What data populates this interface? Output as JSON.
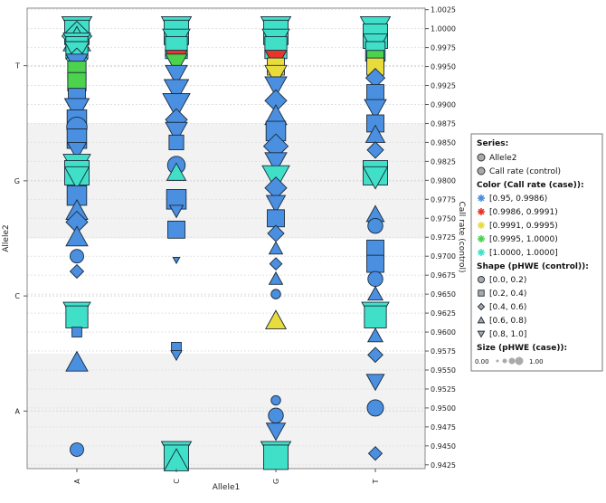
{
  "chart_data": {
    "type": "scatter",
    "x_axis": {
      "label": "Allele1",
      "categories": [
        "A",
        "C",
        "G",
        "T"
      ]
    },
    "y_left_axis": {
      "label": "Allele2",
      "categories": [
        "A",
        "C",
        "G",
        "T"
      ]
    },
    "y_right_axis": {
      "label": "Call rate (control)",
      "range": [
        0.942,
        1.0027
      ],
      "ticks": [
        "1.0025",
        "1.0000",
        "0.9975",
        "0.9950",
        "0.9925",
        "0.9900",
        "0.9875",
        "0.9850",
        "0.9825",
        "0.9800",
        "0.9775",
        "0.9750",
        "0.9725",
        "0.9700",
        "0.9675",
        "0.9650",
        "0.9625",
        "0.9600",
        "0.9575",
        "0.9550",
        "0.9525",
        "0.9500",
        "0.9475",
        "0.9450",
        "0.9425"
      ]
    },
    "grid": true,
    "legend": {
      "position": "right",
      "series_title": "Series:",
      "series": [
        {
          "name": "Allele2",
          "symbol": "circle"
        },
        {
          "name": "Call rate (control)",
          "symbol": "circle"
        }
      ],
      "color_title": "Color (Call rate (case)):",
      "color_bins": [
        {
          "label": "[0.95, 0.9986)",
          "color": "#4a8fe0"
        },
        {
          "label": "[0.9986, 0.9991)",
          "color": "#e8342a"
        },
        {
          "label": "[0.9991, 0.9995)",
          "color": "#e8dc3c"
        },
        {
          "label": "[0.9995, 1.0000)",
          "color": "#4cd24c"
        },
        {
          "label": "[1.0000, 1.0000]",
          "color": "#40e0c8"
        }
      ],
      "shape_title": "Shape (pHWE (control)):",
      "shape_bins": [
        {
          "label": "[0.0, 0.2)",
          "shape": "circle"
        },
        {
          "label": "[0.2, 0.4)",
          "shape": "square"
        },
        {
          "label": "[0.4, 0.6)",
          "shape": "diamond"
        },
        {
          "label": "[0.6, 0.8)",
          "shape": "triangle-up"
        },
        {
          "label": "[0.8, 1.0]",
          "shape": "triangle-down"
        }
      ],
      "size_title": "Size (pHWE (case)):",
      "size_min_label": "0.00",
      "size_max_label": "1.00"
    },
    "points": [
      {
        "x": "A",
        "y": 1.0,
        "s": "triangle-down",
        "c": "#40e0c8",
        "z": 0.9
      },
      {
        "x": "A",
        "y": 0.9995,
        "s": "square",
        "c": "#40e0c8",
        "z": 0.8
      },
      {
        "x": "A",
        "y": 0.999,
        "s": "diamond",
        "c": "#40e0c8",
        "z": 0.9
      },
      {
        "x": "A",
        "y": 0.9985,
        "s": "triangle-up",
        "c": "#40e0c8",
        "z": 0.8
      },
      {
        "x": "A",
        "y": 0.998,
        "s": "triangle-down",
        "c": "#40e0c8",
        "z": 0.8
      },
      {
        "x": "A",
        "y": 0.9975,
        "s": "square",
        "c": "#40e0c8",
        "z": 0.7
      },
      {
        "x": "A",
        "y": 0.997,
        "s": "triangle-down",
        "c": "#40e0c8",
        "z": 0.7
      },
      {
        "x": "A",
        "y": 0.996,
        "s": "diamond",
        "c": "#40e0c8",
        "z": 0.6
      },
      {
        "x": "A",
        "y": 0.9955,
        "s": "triangle-down",
        "c": "#4a8fe0",
        "z": 0.6
      },
      {
        "x": "A",
        "y": 0.9945,
        "s": "square",
        "c": "#4cd24c",
        "z": 0.55
      },
      {
        "x": "A",
        "y": 0.993,
        "s": "square",
        "c": "#4cd24c",
        "z": 0.55
      },
      {
        "x": "A",
        "y": 0.991,
        "s": "square",
        "c": "#4a8fe0",
        "z": 0.5
      },
      {
        "x": "A",
        "y": 0.9895,
        "s": "triangle-down",
        "c": "#4a8fe0",
        "z": 0.7
      },
      {
        "x": "A",
        "y": 0.988,
        "s": "square",
        "c": "#4a8fe0",
        "z": 0.6
      },
      {
        "x": "A",
        "y": 0.987,
        "s": "circle",
        "c": "#4a8fe0",
        "z": 0.55
      },
      {
        "x": "A",
        "y": 0.9855,
        "s": "square",
        "c": "#4a8fe0",
        "z": 0.6
      },
      {
        "x": "A",
        "y": 0.984,
        "s": "triangle-down",
        "c": "#4a8fe0",
        "z": 0.5
      },
      {
        "x": "A",
        "y": 0.982,
        "s": "triangle-down",
        "c": "#40e0c8",
        "z": 0.8
      },
      {
        "x": "A",
        "y": 0.981,
        "s": "square",
        "c": "#40e0c8",
        "z": 0.8
      },
      {
        "x": "A",
        "y": 0.9805,
        "s": "triangle-down",
        "c": "#40e0c8",
        "z": 0.7
      },
      {
        "x": "A",
        "y": 0.978,
        "s": "square",
        "c": "#4a8fe0",
        "z": 0.6
      },
      {
        "x": "A",
        "y": 0.976,
        "s": "triangle-up",
        "c": "#4a8fe0",
        "z": 0.6
      },
      {
        "x": "A",
        "y": 0.9745,
        "s": "diamond",
        "c": "#4a8fe0",
        "z": 0.6
      },
      {
        "x": "A",
        "y": 0.9725,
        "s": "triangle-up",
        "c": "#4a8fe0",
        "z": 0.6
      },
      {
        "x": "A",
        "y": 0.97,
        "s": "circle",
        "c": "#4a8fe0",
        "z": 0.3
      },
      {
        "x": "A",
        "y": 0.968,
        "s": "diamond",
        "c": "#4a8fe0",
        "z": 0.3
      },
      {
        "x": "A",
        "y": 0.9625,
        "s": "triangle-down",
        "c": "#40e0c8",
        "z": 0.8
      },
      {
        "x": "A",
        "y": 0.962,
        "s": "square",
        "c": "#40e0c8",
        "z": 0.7
      },
      {
        "x": "A",
        "y": 0.96,
        "s": "square",
        "c": "#4a8fe0",
        "z": 0.2
      },
      {
        "x": "A",
        "y": 0.956,
        "s": "triangle-up",
        "c": "#4a8fe0",
        "z": 0.6
      },
      {
        "x": "A",
        "y": 0.9445,
        "s": "circle",
        "c": "#4a8fe0",
        "z": 0.3
      },
      {
        "x": "C",
        "y": 1.0,
        "s": "triangle-down",
        "c": "#40e0c8",
        "z": 0.9
      },
      {
        "x": "C",
        "y": 0.9995,
        "s": "square",
        "c": "#40e0c8",
        "z": 0.8
      },
      {
        "x": "C",
        "y": 0.9985,
        "s": "triangle-down",
        "c": "#40e0c8",
        "z": 0.8
      },
      {
        "x": "C",
        "y": 0.9975,
        "s": "square",
        "c": "#40e0c8",
        "z": 0.7
      },
      {
        "x": "C",
        "y": 0.996,
        "s": "triangle-down",
        "c": "#e8342a",
        "z": 0.6
      },
      {
        "x": "C",
        "y": 0.9955,
        "s": "triangle-down",
        "c": "#4cd24c",
        "z": 0.6
      },
      {
        "x": "C",
        "y": 0.994,
        "s": "triangle-down",
        "c": "#4a8fe0",
        "z": 0.6
      },
      {
        "x": "C",
        "y": 0.992,
        "s": "triangle-down",
        "c": "#4a8fe0",
        "z": 0.7
      },
      {
        "x": "C",
        "y": 0.99,
        "s": "triangle-down",
        "c": "#4a8fe0",
        "z": 0.8
      },
      {
        "x": "C",
        "y": 0.988,
        "s": "diamond",
        "c": "#4a8fe0",
        "z": 0.6
      },
      {
        "x": "C",
        "y": 0.9865,
        "s": "triangle-down",
        "c": "#4a8fe0",
        "z": 0.6
      },
      {
        "x": "C",
        "y": 0.985,
        "s": "square",
        "c": "#4a8fe0",
        "z": 0.4
      },
      {
        "x": "C",
        "y": 0.982,
        "s": "circle",
        "c": "#4a8fe0",
        "z": 0.45
      },
      {
        "x": "C",
        "y": 0.981,
        "s": "triangle-up",
        "c": "#40e0c8",
        "z": 0.5
      },
      {
        "x": "C",
        "y": 0.9775,
        "s": "square",
        "c": "#4a8fe0",
        "z": 0.6
      },
      {
        "x": "C",
        "y": 0.976,
        "s": "triangle-down",
        "c": "#4a8fe0",
        "z": 0.3
      },
      {
        "x": "C",
        "y": 0.9735,
        "s": "square",
        "c": "#4a8fe0",
        "z": 0.5
      },
      {
        "x": "C",
        "y": 0.9695,
        "s": "triangle-down",
        "c": "#4a8fe0",
        "z": 0.05
      },
      {
        "x": "C",
        "y": 0.958,
        "s": "square",
        "c": "#4a8fe0",
        "z": 0.2
      },
      {
        "x": "C",
        "y": 0.957,
        "s": "triangle-down",
        "c": "#4a8fe0",
        "z": 0.2
      },
      {
        "x": "C",
        "y": 0.944,
        "s": "triangle-down",
        "c": "#40e0c8",
        "z": 0.9
      },
      {
        "x": "C",
        "y": 0.9435,
        "s": "square",
        "c": "#40e0c8",
        "z": 0.8
      },
      {
        "x": "C",
        "y": 0.943,
        "s": "triangle-up",
        "c": "#40e0c8",
        "z": 0.7
      },
      {
        "x": "G",
        "y": 1.0,
        "s": "triangle-down",
        "c": "#40e0c8",
        "z": 0.9
      },
      {
        "x": "G",
        "y": 0.9995,
        "s": "square",
        "c": "#40e0c8",
        "z": 0.8
      },
      {
        "x": "G",
        "y": 0.9985,
        "s": "triangle-down",
        "c": "#40e0c8",
        "z": 0.8
      },
      {
        "x": "G",
        "y": 0.9975,
        "s": "square",
        "c": "#40e0c8",
        "z": 0.7
      },
      {
        "x": "G",
        "y": 0.996,
        "s": "triangle-down",
        "c": "#e8342a",
        "z": 0.6
      },
      {
        "x": "G",
        "y": 0.995,
        "s": "square",
        "c": "#e8dc3c",
        "z": 0.5
      },
      {
        "x": "G",
        "y": 0.994,
        "s": "triangle-down",
        "c": "#e8dc3c",
        "z": 0.6
      },
      {
        "x": "G",
        "y": 0.9925,
        "s": "triangle-down",
        "c": "#4a8fe0",
        "z": 0.6
      },
      {
        "x": "G",
        "y": 0.9905,
        "s": "diamond",
        "c": "#4a8fe0",
        "z": 0.6
      },
      {
        "x": "G",
        "y": 0.9885,
        "s": "triangle-up",
        "c": "#4a8fe0",
        "z": 0.6
      },
      {
        "x": "G",
        "y": 0.9865,
        "s": "square",
        "c": "#4a8fe0",
        "z": 0.6
      },
      {
        "x": "G",
        "y": 0.9845,
        "s": "diamond",
        "c": "#4a8fe0",
        "z": 0.7
      },
      {
        "x": "G",
        "y": 0.9825,
        "s": "triangle-down",
        "c": "#4a8fe0",
        "z": 0.6
      },
      {
        "x": "G",
        "y": 0.9805,
        "s": "triangle-down",
        "c": "#40e0c8",
        "z": 0.8
      },
      {
        "x": "G",
        "y": 0.979,
        "s": "diamond",
        "c": "#4a8fe0",
        "z": 0.6
      },
      {
        "x": "G",
        "y": 0.977,
        "s": "triangle-down",
        "c": "#4a8fe0",
        "z": 0.5
      },
      {
        "x": "G",
        "y": 0.975,
        "s": "square",
        "c": "#4a8fe0",
        "z": 0.5
      },
      {
        "x": "G",
        "y": 0.973,
        "s": "diamond",
        "c": "#4a8fe0",
        "z": 0.4
      },
      {
        "x": "G",
        "y": 0.971,
        "s": "triangle-up",
        "c": "#4a8fe0",
        "z": 0.3
      },
      {
        "x": "G",
        "y": 0.969,
        "s": "diamond",
        "c": "#4a8fe0",
        "z": 0.25
      },
      {
        "x": "G",
        "y": 0.967,
        "s": "triangle-up",
        "c": "#4a8fe0",
        "z": 0.3
      },
      {
        "x": "G",
        "y": 0.965,
        "s": "circle",
        "c": "#4a8fe0",
        "z": 0.15
      },
      {
        "x": "G",
        "y": 0.9615,
        "s": "triangle-up",
        "c": "#e8dc3c",
        "z": 0.55
      },
      {
        "x": "G",
        "y": 0.951,
        "s": "circle",
        "c": "#4a8fe0",
        "z": 0.15
      },
      {
        "x": "G",
        "y": 0.949,
        "s": "circle",
        "c": "#4a8fe0",
        "z": 0.35
      },
      {
        "x": "G",
        "y": 0.947,
        "s": "triangle-down",
        "c": "#4a8fe0",
        "z": 0.5
      },
      {
        "x": "G",
        "y": 0.944,
        "s": "triangle-down",
        "c": "#40e0c8",
        "z": 0.9
      },
      {
        "x": "G",
        "y": 0.9435,
        "s": "square",
        "c": "#40e0c8",
        "z": 0.8
      },
      {
        "x": "T",
        "y": 1.0,
        "s": "triangle-down",
        "c": "#40e0c8",
        "z": 0.9
      },
      {
        "x": "T",
        "y": 0.999,
        "s": "square",
        "c": "#40e0c8",
        "z": 0.8
      },
      {
        "x": "T",
        "y": 0.998,
        "s": "triangle-down",
        "c": "#40e0c8",
        "z": 0.7
      },
      {
        "x": "T",
        "y": 0.997,
        "s": "square",
        "c": "#40e0c8",
        "z": 0.6
      },
      {
        "x": "T",
        "y": 0.996,
        "s": "square",
        "c": "#4cd24c",
        "z": 0.5
      },
      {
        "x": "T",
        "y": 0.995,
        "s": "square",
        "c": "#e8dc3c",
        "z": 0.5
      },
      {
        "x": "T",
        "y": 0.9935,
        "s": "diamond",
        "c": "#4a8fe0",
        "z": 0.5
      },
      {
        "x": "T",
        "y": 0.9915,
        "s": "square",
        "c": "#4a8fe0",
        "z": 0.5
      },
      {
        "x": "T",
        "y": 0.9895,
        "s": "triangle-down",
        "c": "#4a8fe0",
        "z": 0.6
      },
      {
        "x": "T",
        "y": 0.9875,
        "s": "square",
        "c": "#4a8fe0",
        "z": 0.5
      },
      {
        "x": "T",
        "y": 0.986,
        "s": "triangle-up",
        "c": "#4a8fe0",
        "z": 0.5
      },
      {
        "x": "T",
        "y": 0.984,
        "s": "diamond",
        "c": "#4a8fe0",
        "z": 0.4
      },
      {
        "x": "T",
        "y": 0.981,
        "s": "square",
        "c": "#40e0c8",
        "z": 0.8
      },
      {
        "x": "T",
        "y": 0.9805,
        "s": "triangle-down",
        "c": "#40e0c8",
        "z": 0.7
      },
      {
        "x": "T",
        "y": 0.9755,
        "s": "triangle-up",
        "c": "#4a8fe0",
        "z": 0.45
      },
      {
        "x": "T",
        "y": 0.974,
        "s": "circle",
        "c": "#4a8fe0",
        "z": 0.35
      },
      {
        "x": "T",
        "y": 0.971,
        "s": "square",
        "c": "#4a8fe0",
        "z": 0.5
      },
      {
        "x": "T",
        "y": 0.969,
        "s": "square",
        "c": "#4a8fe0",
        "z": 0.5
      },
      {
        "x": "T",
        "y": 0.967,
        "s": "circle",
        "c": "#4a8fe0",
        "z": 0.35
      },
      {
        "x": "T",
        "y": 0.965,
        "s": "triangle-up",
        "c": "#4a8fe0",
        "z": 0.35
      },
      {
        "x": "T",
        "y": 0.9625,
        "s": "triangle-down",
        "c": "#40e0c8",
        "z": 0.8
      },
      {
        "x": "T",
        "y": 0.962,
        "s": "square",
        "c": "#40e0c8",
        "z": 0.7
      },
      {
        "x": "T",
        "y": 0.9595,
        "s": "triangle-up",
        "c": "#4a8fe0",
        "z": 0.35
      },
      {
        "x": "T",
        "y": 0.957,
        "s": "diamond",
        "c": "#4a8fe0",
        "z": 0.35
      },
      {
        "x": "T",
        "y": 0.9535,
        "s": "triangle-down",
        "c": "#4a8fe0",
        "z": 0.45
      },
      {
        "x": "T",
        "y": 0.95,
        "s": "circle",
        "c": "#4a8fe0",
        "z": 0.4
      },
      {
        "x": "T",
        "y": 0.944,
        "s": "diamond",
        "c": "#4a8fe0",
        "z": 0.3
      }
    ]
  }
}
